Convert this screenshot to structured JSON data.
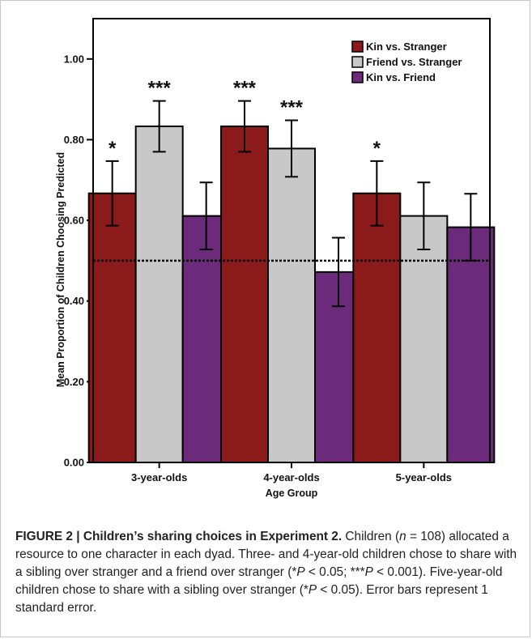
{
  "chart_data": {
    "type": "bar",
    "categories": [
      "3-year-olds",
      "4-year-olds",
      "5-year-olds"
    ],
    "series": [
      {
        "name": "Kin vs. Stranger",
        "color": "#8b1a1a",
        "values": [
          0.667,
          0.833,
          0.667
        ],
        "errors": [
          0.08,
          0.063,
          0.08
        ],
        "significance": [
          "*",
          "***",
          "*"
        ]
      },
      {
        "name": "Friend vs. Stranger",
        "color": "#c8c8c8",
        "values": [
          0.833,
          0.778,
          0.611
        ],
        "errors": [
          0.063,
          0.07,
          0.083
        ],
        "significance": [
          "***",
          "***",
          ""
        ]
      },
      {
        "name": "Kin vs. Friend",
        "color": "#6b2a7a",
        "values": [
          0.611,
          0.472,
          0.583
        ],
        "errors": [
          0.083,
          0.085,
          0.083
        ],
        "significance": [
          "",
          "",
          ""
        ]
      }
    ],
    "yticks": [
      "0.00",
      "0.20",
      "0.40",
      "0.60",
      "0.80",
      "1.00"
    ],
    "ylim": [
      0,
      1.1
    ],
    "reference_line": 0.5,
    "xlabel": "Age Group",
    "ylabel": "Mean Proportion of Children Choosing Predicted",
    "legend_position": "top-right"
  },
  "caption": {
    "figure_label": "FIGURE 2 | Children’s sharing choices in Experiment 2.",
    "text_1": " Children (",
    "n_var": "n",
    "text_2": " = 108) allocated a resource to one character in each dyad. Three- and 4-year-old children chose to share with a sibling over stranger and a friend over stranger (*",
    "p_var_1": "P",
    "text_3": " < 0.05; ***",
    "p_var_2": "P",
    "text_4": " < 0.001). Five-year-old children chose to share with a sibling over stranger (*",
    "p_var_3": "P",
    "text_5": " < 0.05). Error bars represent 1 standard error."
  }
}
